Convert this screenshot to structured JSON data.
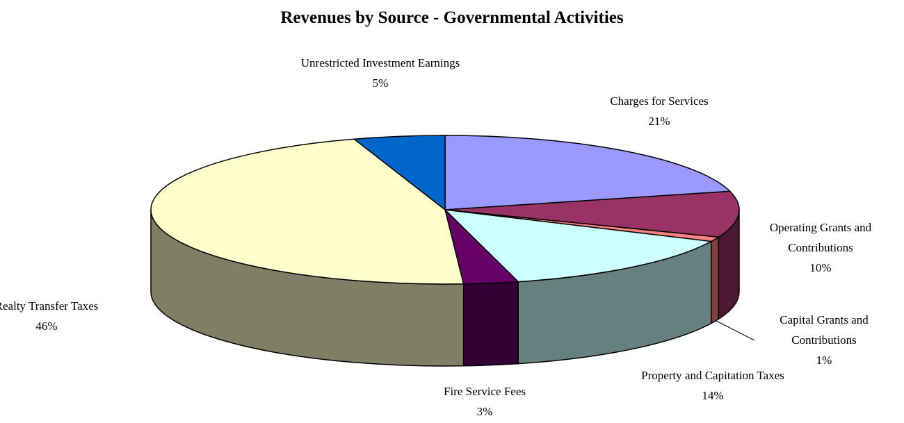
{
  "chart_data": {
    "type": "pie",
    "title": "Revenues by Source - Governmental Activities",
    "categories": [
      "Charges for Services",
      "Operating Grants and Contributions",
      "Capital Grants and Contributions",
      "Property and Capitation Taxes",
      "Fire Service Fees",
      "Realty Transfer Taxes",
      "Unrestricted Investment Earnings"
    ],
    "values": [
      21,
      10,
      1,
      14,
      3,
      46,
      5
    ],
    "value_labels": [
      "21%",
      "10%",
      "1%",
      "14%",
      "3%",
      "46%",
      "5%"
    ],
    "colors": [
      "#9999ff",
      "#993366",
      "#ff8080",
      "#ccffff",
      "#660066",
      "#ffffcc",
      "#0066cc"
    ]
  }
}
